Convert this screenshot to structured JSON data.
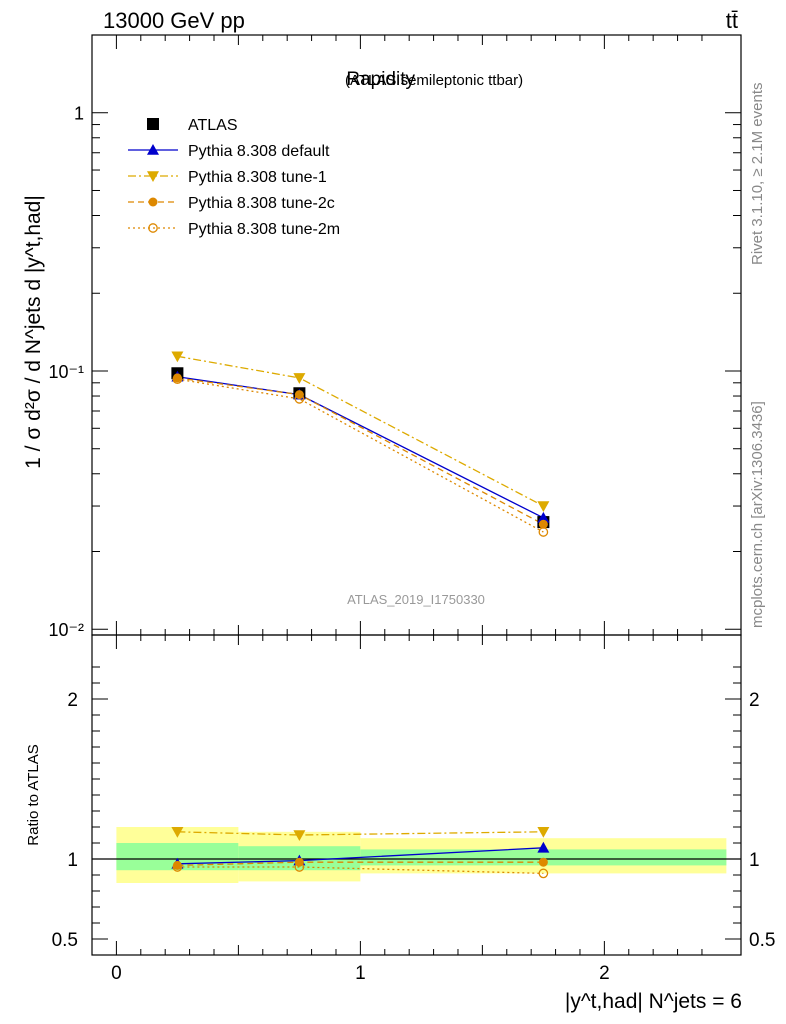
{
  "header": {
    "energy_label": "13000 GeV pp",
    "process_label": "tt̄"
  },
  "side_labels": {
    "rivet": "Rivet 3.1.10, ≥ 2.1M events",
    "mcplots": "mcplots.cern.ch [arXiv:1306.3436]"
  },
  "chart_data": [
    {
      "type": "line",
      "title": "Rapidity",
      "subtitle": "(ATLAS semileptonic ttbar)",
      "watermark": "ATLAS_2019_I1750330",
      "ylabel": "1 / σ d²σ / d N^jets d |y^t,had|",
      "yscale": "log",
      "ylim": [
        0.0095,
        2.0
      ],
      "xlim": [
        -0.1,
        2.56
      ],
      "yticks": [
        {
          "value": 1,
          "label": "1"
        },
        {
          "value": 0.1,
          "label": "10⁻¹"
        },
        {
          "value": 0.01,
          "label": "10⁻²"
        }
      ],
      "legend_position": "top-left",
      "series": [
        {
          "name": "ATLAS",
          "color": "#000000",
          "marker": "square",
          "line": "none",
          "x": [
            0.25,
            0.75,
            1.75
          ],
          "y": [
            0.098,
            0.082,
            0.026
          ]
        },
        {
          "name": "Pythia 8.308 default",
          "color": "#0000cc",
          "marker": "triangle-up",
          "line": "solid",
          "x": [
            0.25,
            0.75,
            1.75
          ],
          "y": [
            0.095,
            0.081,
            0.027
          ]
        },
        {
          "name": "Pythia 8.308 tune-1",
          "color": "#ddaa00",
          "marker": "triangle-down",
          "line": "dashdot",
          "x": [
            0.25,
            0.75,
            1.75
          ],
          "y": [
            0.114,
            0.094,
            0.03
          ]
        },
        {
          "name": "Pythia 8.308 tune-2c",
          "color": "#dd8800",
          "marker": "circle",
          "line": "dashed",
          "x": [
            0.25,
            0.75,
            1.75
          ],
          "y": [
            0.094,
            0.081,
            0.0255
          ]
        },
        {
          "name": "Pythia 8.308 tune-2m",
          "color": "#dd8800",
          "marker": "circle-open",
          "line": "dotted",
          "x": [
            0.25,
            0.75,
            1.75
          ],
          "y": [
            0.093,
            0.078,
            0.0238
          ]
        }
      ]
    },
    {
      "type": "line",
      "title": "",
      "ylabel": "Ratio to ATLAS",
      "xlabel": "|y^t,had| N^jets = 6",
      "ylim": [
        0.4,
        2.4
      ],
      "xlim": [
        -0.1,
        2.56
      ],
      "yticks": [
        {
          "value": 2,
          "label": "2"
        },
        {
          "value": 1,
          "label": "1"
        },
        {
          "value": 0.5,
          "label": "0.5"
        }
      ],
      "xticks": [
        {
          "value": 0,
          "label": "0"
        },
        {
          "value": 1,
          "label": "1"
        },
        {
          "value": 2,
          "label": "2"
        }
      ],
      "bands": [
        {
          "x": [
            0.0,
            0.5
          ],
          "stat": [
            0.93,
            1.1
          ],
          "total": [
            0.85,
            1.2
          ]
        },
        {
          "x": [
            0.5,
            1.0
          ],
          "stat": [
            0.93,
            1.08
          ],
          "total": [
            0.86,
            1.17
          ]
        },
        {
          "x": [
            1.0,
            2.5
          ],
          "stat": [
            0.96,
            1.06
          ],
          "total": [
            0.91,
            1.13
          ]
        }
      ],
      "series": [
        {
          "name": "Pythia 8.308 default",
          "color": "#0000cc",
          "marker": "triangle-up",
          "line": "solid",
          "x": [
            0.25,
            0.75,
            1.75
          ],
          "y": [
            0.97,
            0.99,
            1.07
          ]
        },
        {
          "name": "Pythia 8.308 tune-1",
          "color": "#ddaa00",
          "marker": "triangle-down",
          "line": "dashdot",
          "x": [
            0.25,
            0.75,
            1.75
          ],
          "y": [
            1.17,
            1.15,
            1.17
          ]
        },
        {
          "name": "Pythia 8.308 tune-2c",
          "color": "#dd8800",
          "marker": "circle",
          "line": "dashed",
          "x": [
            0.25,
            0.75,
            1.75
          ],
          "y": [
            0.96,
            0.98,
            0.98
          ]
        },
        {
          "name": "Pythia 8.308 tune-2m",
          "color": "#dd8800",
          "marker": "circle-open",
          "line": "dotted",
          "x": [
            0.25,
            0.75,
            1.75
          ],
          "y": [
            0.95,
            0.95,
            0.91
          ]
        }
      ]
    }
  ]
}
